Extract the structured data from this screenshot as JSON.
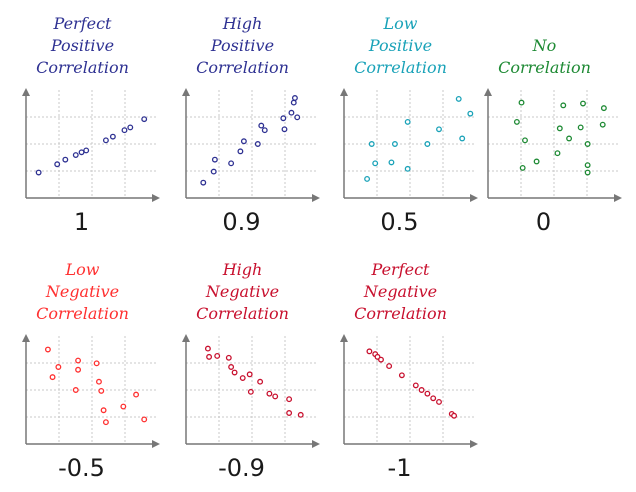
{
  "chart_data": [
    {
      "type": "scatter",
      "title": "Perfect Positive Correlation",
      "title_lines": [
        "Perfect",
        "Positive",
        "Correlation"
      ],
      "value_label": "1",
      "color": "#2e3192",
      "xlim": [
        0,
        10
      ],
      "ylim": [
        0,
        10
      ],
      "points": [
        [
          0.4,
          1.9
        ],
        [
          2,
          2.8
        ],
        [
          2.7,
          3.3
        ],
        [
          3.6,
          3.8
        ],
        [
          4.1,
          4.1
        ],
        [
          4.5,
          4.3
        ],
        [
          6.2,
          5.4
        ],
        [
          6.8,
          5.8
        ],
        [
          7.8,
          6.5
        ],
        [
          8.3,
          6.8
        ],
        [
          9.5,
          7.7
        ]
      ]
    },
    {
      "type": "scatter",
      "title": "High Positive Correlation",
      "title_lines": [
        "High",
        "Positive",
        "Correlation"
      ],
      "value_label": "0.9",
      "color": "#2e3192",
      "xlim": [
        0,
        10
      ],
      "ylim": [
        0,
        10
      ],
      "points": [
        [
          0.8,
          0.8
        ],
        [
          1.7,
          2
        ],
        [
          1.8,
          3.3
        ],
        [
          3.2,
          2.9
        ],
        [
          4,
          4.2
        ],
        [
          4.3,
          5.3
        ],
        [
          5.5,
          5
        ],
        [
          5.8,
          7
        ],
        [
          6.1,
          6.5
        ],
        [
          7.7,
          7.8
        ],
        [
          7.8,
          6.6
        ],
        [
          8.4,
          8.4
        ],
        [
          8.6,
          9.5
        ],
        [
          8.7,
          10
        ],
        [
          8.9,
          7.9
        ]
      ]
    },
    {
      "type": "scatter",
      "title": "Low Positive Correlation",
      "title_lines": [
        "Low",
        "Positive",
        "Correlation"
      ],
      "value_label": "0.5",
      "color": "#19a2b8",
      "xlim": [
        0,
        10
      ],
      "ylim": [
        0,
        10
      ],
      "points": [
        [
          1.3,
          1.2
        ],
        [
          1.7,
          5
        ],
        [
          2,
          2.9
        ],
        [
          3.4,
          3
        ],
        [
          3.7,
          5
        ],
        [
          4.8,
          2.3
        ],
        [
          4.8,
          7.4
        ],
        [
          6.5,
          5
        ],
        [
          7.5,
          6.6
        ],
        [
          9.5,
          5.6
        ],
        [
          9.2,
          9.9
        ],
        [
          10.2,
          8.3
        ]
      ]
    },
    {
      "type": "scatter",
      "title": "No Correlation",
      "title_lines": [
        "No",
        "Correlation"
      ],
      "value_label": "0",
      "color": "#1e8a34",
      "xlim": [
        0,
        10
      ],
      "ylim": [
        0,
        10
      ],
      "points": [
        [
          1.8,
          7.4
        ],
        [
          2.2,
          9.5
        ],
        [
          2.5,
          5.4
        ],
        [
          2.3,
          2.4
        ],
        [
          3.5,
          3.1
        ],
        [
          5.3,
          4
        ],
        [
          5.5,
          6.7
        ],
        [
          5.8,
          9.2
        ],
        [
          6.3,
          5.6
        ],
        [
          7.3,
          6.8
        ],
        [
          7.5,
          9.4
        ],
        [
          7.9,
          2.7
        ],
        [
          7.9,
          1.9
        ],
        [
          7.9,
          5
        ],
        [
          9.2,
          7.1
        ],
        [
          9.3,
          8.9
        ]
      ]
    },
    {
      "type": "scatter",
      "title": "Low Negative Correlation",
      "title_lines": [
        "Low",
        "Negative",
        "Correlation"
      ],
      "value_label": "-0.5",
      "color": "#ff3030",
      "xlim": [
        0,
        10
      ],
      "ylim": [
        0,
        10
      ],
      "points": [
        [
          1.2,
          9.4
        ],
        [
          1.6,
          6.4
        ],
        [
          2.1,
          7.5
        ],
        [
          3.8,
          8.2
        ],
        [
          3.8,
          7.2
        ],
        [
          3.6,
          5
        ],
        [
          5.4,
          7.9
        ],
        [
          5.6,
          5.9
        ],
        [
          5.8,
          4.9
        ],
        [
          6,
          2.8
        ],
        [
          6.2,
          1.5
        ],
        [
          7.7,
          3.2
        ],
        [
          8.8,
          4.5
        ],
        [
          9.5,
          1.8
        ]
      ]
    },
    {
      "type": "scatter",
      "title": "High Negative Correlation",
      "title_lines": [
        "High",
        "Negative",
        "Correlation"
      ],
      "value_label": "-0.9",
      "color": "#c8102e",
      "xlim": [
        0,
        10
      ],
      "ylim": [
        0,
        10
      ],
      "points": [
        [
          1.2,
          9.5
        ],
        [
          1.3,
          8.6
        ],
        [
          2,
          8.7
        ],
        [
          3,
          8.5
        ],
        [
          3.2,
          7.5
        ],
        [
          3.5,
          6.9
        ],
        [
          4.2,
          6.3
        ],
        [
          4.8,
          6.7
        ],
        [
          4.9,
          4.8
        ],
        [
          5.7,
          5.9
        ],
        [
          6.5,
          4.6
        ],
        [
          7,
          4.3
        ],
        [
          8.2,
          4
        ],
        [
          8.2,
          2.5
        ],
        [
          9.2,
          2.3
        ]
      ]
    },
    {
      "type": "scatter",
      "title": "Perfect Negative Correlation",
      "title_lines": [
        "Perfect",
        "Negative",
        "Correlation"
      ],
      "value_label": "-1",
      "color": "#c8102e",
      "xlim": [
        0,
        10
      ],
      "ylim": [
        0,
        10
      ],
      "points": [
        [
          1.5,
          9.2
        ],
        [
          2,
          8.9
        ],
        [
          2.2,
          8.6
        ],
        [
          2.5,
          8.3
        ],
        [
          3.2,
          7.6
        ],
        [
          4.3,
          6.6
        ],
        [
          5.5,
          5.5
        ],
        [
          6,
          5
        ],
        [
          6.5,
          4.6
        ],
        [
          7,
          4.1
        ],
        [
          7.5,
          3.7
        ],
        [
          8.6,
          2.4
        ],
        [
          8.8,
          2.2
        ]
      ]
    }
  ]
}
